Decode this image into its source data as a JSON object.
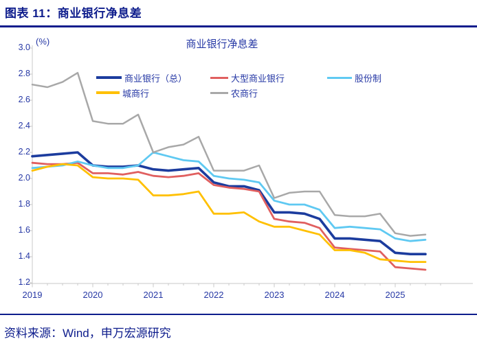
{
  "header": {
    "title": "图表 11：商业银行净息差"
  },
  "source": {
    "text": "资料来源：Wind，申万宏源研究"
  },
  "colors": {
    "header_navy": "#0d1c8c",
    "label_blue": "#2638a5",
    "axis_gray": "#c8c8c8",
    "series_total": "#1c3c9e",
    "series_large": "#e05f5f",
    "series_jointstock": "#5fc9f2",
    "series_city": "#ffc000",
    "series_rural": "#a8a8a8"
  },
  "chart_data": {
    "type": "line",
    "title": "商业银行净息差",
    "unit_label": "(%)",
    "frequency": "quarterly",
    "x_periods": [
      "2019Q1",
      "2019Q2",
      "2019Q3",
      "2019Q4",
      "2020Q1",
      "2020Q2",
      "2020Q3",
      "2020Q4",
      "2021Q1",
      "2021Q2",
      "2021Q3",
      "2021Q4",
      "2022Q1",
      "2022Q2",
      "2022Q3",
      "2022Q4",
      "2023Q1",
      "2023Q2",
      "2023Q3",
      "2023Q4",
      "2024Q1",
      "2024Q2",
      "2024Q3",
      "2024Q4",
      "2025Q1",
      "2025Q2",
      "2025Q3"
    ],
    "x_tick_labels": [
      "2019",
      "2020",
      "2021",
      "2022",
      "2023",
      "2024",
      "2025"
    ],
    "y_tick_labels": [
      "3.0",
      "2.8",
      "2.6",
      "2.4",
      "2.2",
      "2.0",
      "1.8",
      "1.6",
      "1.4",
      "1.2"
    ],
    "ylim": [
      1.2,
      3.0
    ],
    "grid": false,
    "legend_position": "top-inside",
    "series": [
      {
        "name": "商业银行（总）",
        "color": "#1c3c9e",
        "stroke_width": 3.6,
        "values": [
          2.17,
          2.18,
          2.19,
          2.2,
          2.1,
          2.09,
          2.09,
          2.1,
          2.07,
          2.06,
          2.07,
          2.08,
          1.97,
          1.94,
          1.94,
          1.91,
          1.74,
          1.74,
          1.73,
          1.69,
          1.54,
          1.54,
          1.53,
          1.52,
          1.43,
          1.42,
          1.42
        ]
      },
      {
        "name": "大型商业银行",
        "color": "#e05f5f",
        "stroke_width": 2.8,
        "values": [
          2.12,
          2.11,
          2.11,
          2.12,
          2.04,
          2.04,
          2.03,
          2.05,
          2.02,
          2.01,
          2.02,
          2.04,
          1.95,
          1.93,
          1.92,
          1.9,
          1.69,
          1.67,
          1.66,
          1.62,
          1.47,
          1.46,
          1.45,
          1.44,
          1.32,
          1.31,
          1.3
        ]
      },
      {
        "name": "股份制",
        "color": "#5fc9f2",
        "stroke_width": 2.8,
        "values": [
          2.08,
          2.09,
          2.1,
          2.13,
          2.1,
          2.08,
          2.08,
          2.1,
          2.2,
          2.17,
          2.14,
          2.13,
          2.02,
          2.0,
          1.99,
          1.97,
          1.83,
          1.8,
          1.8,
          1.76,
          1.62,
          1.63,
          1.62,
          1.61,
          1.54,
          1.52,
          1.53
        ]
      },
      {
        "name": "城商行",
        "color": "#ffc000",
        "stroke_width": 2.8,
        "values": [
          2.06,
          2.09,
          2.11,
          2.1,
          2.01,
          2.0,
          2.0,
          1.99,
          1.87,
          1.87,
          1.88,
          1.9,
          1.73,
          1.73,
          1.74,
          1.67,
          1.63,
          1.63,
          1.6,
          1.57,
          1.45,
          1.45,
          1.43,
          1.38,
          1.37,
          1.36,
          1.36
        ]
      },
      {
        "name": "农商行",
        "color": "#a8a8a8",
        "stroke_width": 2.5,
        "values": [
          2.72,
          2.7,
          2.74,
          2.81,
          2.44,
          2.42,
          2.42,
          2.49,
          2.2,
          2.24,
          2.26,
          2.32,
          2.06,
          2.06,
          2.06,
          2.1,
          1.85,
          1.89,
          1.9,
          1.9,
          1.72,
          1.71,
          1.71,
          1.73,
          1.58,
          1.56,
          1.57
        ]
      }
    ]
  }
}
